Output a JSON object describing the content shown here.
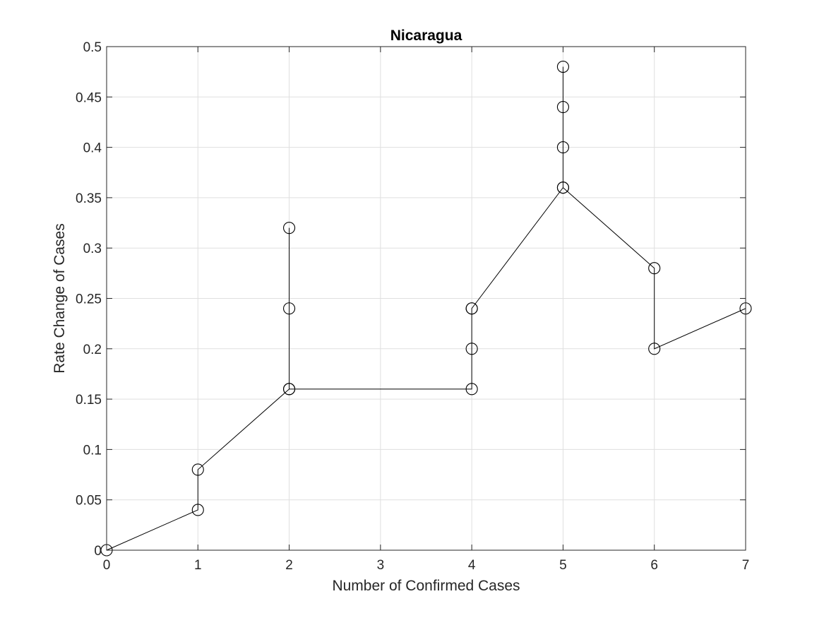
{
  "chart_data": {
    "type": "line",
    "title": "Nicaragua",
    "xlabel": "Number of Confirmed Cases",
    "ylabel": "Rate Change of Cases",
    "xlim": [
      0,
      7
    ],
    "ylim": [
      0,
      0.5
    ],
    "xticks": [
      0,
      1,
      2,
      3,
      4,
      5,
      6,
      7
    ],
    "xtick_labels": [
      "0",
      "1",
      "2",
      "3",
      "4",
      "5",
      "6",
      "7"
    ],
    "yticks": [
      0,
      0.05,
      0.1,
      0.15,
      0.2,
      0.25,
      0.3,
      0.35,
      0.4,
      0.45,
      0.5
    ],
    "ytick_labels": [
      "0",
      "0.05",
      "0.1",
      "0.15",
      "0.2",
      "0.25",
      "0.3",
      "0.35",
      "0.4",
      "0.45",
      "0.5"
    ],
    "grid": true,
    "marker": "circle-open",
    "line_color": "#000000",
    "grid_color": "#dfdfdf",
    "series": [
      {
        "x": [
          0,
          1,
          1,
          2,
          2,
          2,
          2,
          4,
          4,
          4,
          4,
          5,
          5,
          5,
          5,
          5,
          6,
          6,
          7
        ],
        "y": [
          0,
          0.04,
          0.08,
          0.16,
          0.24,
          0.32,
          0.16,
          0.16,
          0.2,
          0.24,
          0.24,
          0.36,
          0.4,
          0.44,
          0.48,
          0.36,
          0.28,
          0.2,
          0.24
        ]
      }
    ]
  }
}
